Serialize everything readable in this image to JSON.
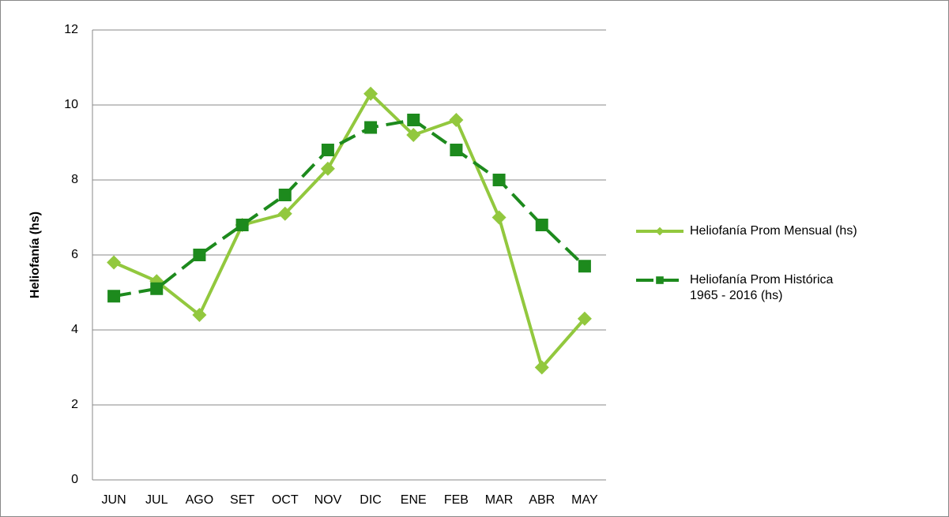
{
  "chart_data": {
    "type": "line",
    "y_label": "Heliofanía (hs)",
    "categories": [
      "JUN",
      "JUL",
      "AGO",
      "SET",
      "OCT",
      "NOV",
      "DIC",
      "ENE",
      "FEB",
      "MAR",
      "ABR",
      "MAY"
    ],
    "series": [
      {
        "name": "Heliofanía Prom Mensual (hs)",
        "color": "#92c83e",
        "marker": "diamond",
        "dash": false,
        "values": [
          5.8,
          5.3,
          4.4,
          6.8,
          7.1,
          8.3,
          10.3,
          9.2,
          9.6,
          7.0,
          3.0,
          4.3
        ]
      },
      {
        "name": "Heliofanía Prom Histórica 1965 - 2016 (hs)",
        "color": "#1d8a1d",
        "marker": "square",
        "dash": true,
        "values": [
          4.9,
          5.1,
          6.0,
          6.8,
          7.6,
          8.8,
          9.4,
          9.6,
          8.8,
          8.0,
          6.8,
          5.7
        ]
      }
    ],
    "ylim": [
      0,
      12
    ],
    "yticks": [
      0,
      2,
      4,
      6,
      8,
      10,
      12
    ],
    "grid": true,
    "legend": "right"
  }
}
